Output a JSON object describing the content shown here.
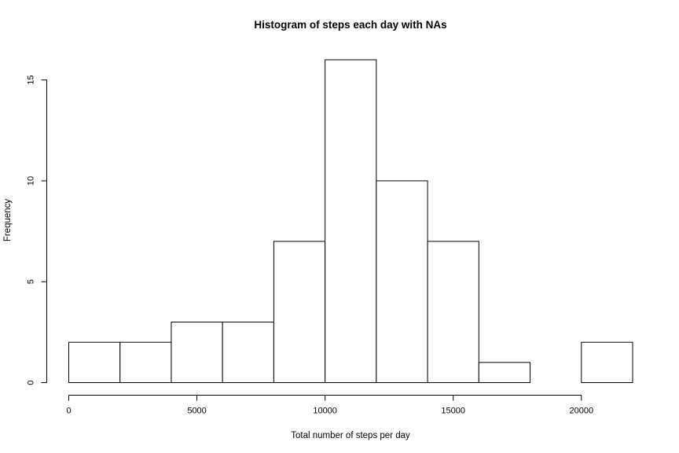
{
  "chart_data": {
    "type": "bar",
    "subtype": "histogram",
    "title": "Histogram of steps each day with NAs",
    "xlabel": "Total number of steps per day",
    "ylabel": "Frequency",
    "bins": [
      {
        "from": 0,
        "to": 2000,
        "count": 2
      },
      {
        "from": 2000,
        "to": 4000,
        "count": 2
      },
      {
        "from": 4000,
        "to": 6000,
        "count": 3
      },
      {
        "from": 6000,
        "to": 8000,
        "count": 3
      },
      {
        "from": 8000,
        "to": 10000,
        "count": 7
      },
      {
        "from": 10000,
        "to": 12000,
        "count": 16
      },
      {
        "from": 12000,
        "to": 14000,
        "count": 10
      },
      {
        "from": 14000,
        "to": 16000,
        "count": 7
      },
      {
        "from": 16000,
        "to": 18000,
        "count": 1
      },
      {
        "from": 18000,
        "to": 20000,
        "count": 0
      },
      {
        "from": 20000,
        "to": 22000,
        "count": 2
      }
    ],
    "xlim": [
      0,
      22000
    ],
    "ylim": [
      0,
      16
    ],
    "x_ticks": [
      0,
      5000,
      10000,
      15000,
      20000
    ],
    "y_ticks": [
      0,
      5,
      10,
      15
    ],
    "grid": false,
    "bar_fill": "#ffffff",
    "bar_stroke": "#000000"
  }
}
